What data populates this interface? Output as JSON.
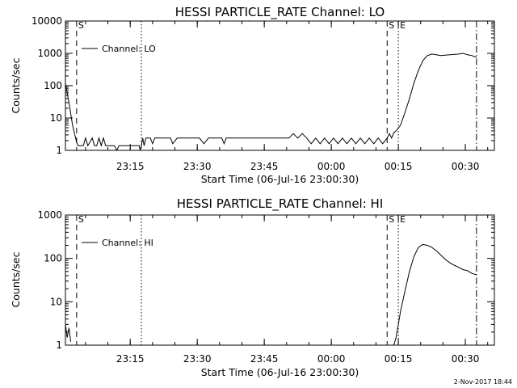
{
  "chart_data": [
    {
      "type": "line",
      "title": "HESSI PARTICLE_RATE Channel: LO",
      "xlabel": "Start Time (06-Jul-16 23:00:30)",
      "ylabel": "Counts/sec",
      "yscale": "log",
      "ylim": [
        1,
        10000
      ],
      "y_ticks": [
        1,
        10,
        100,
        1000,
        10000
      ],
      "y_tick_labels": [
        "1",
        "10",
        "100",
        "1000",
        "10000"
      ],
      "x_unit": "minutes after 23:00:30",
      "xlim": [
        0,
        96
      ],
      "x_ticks": [
        14.5,
        29.5,
        44.5,
        59.5,
        74.5,
        89.5
      ],
      "x_tick_labels": [
        "23:15",
        "23:30",
        "23:45",
        "00:00",
        "00:15",
        "00:30"
      ],
      "legend": {
        "label": "Channel: LO",
        "position": "top-left"
      },
      "grid": false,
      "markers": [
        {
          "x": 2.5,
          "style": "dashed",
          "label": "S"
        },
        {
          "x": 17,
          "style": "dotted",
          "label": ""
        },
        {
          "x": 72,
          "style": "dashed",
          "label": "S"
        },
        {
          "x": 74.5,
          "style": "dotted",
          "label": "E"
        },
        {
          "x": 92,
          "style": "dashdot",
          "label": ""
        }
      ],
      "series": [
        {
          "name": "Channel: LO",
          "x": [
            0,
            0.8,
            1.6,
            2.4,
            2.8,
            4,
            4.5,
            5,
            6,
            6.5,
            7,
            7.5,
            8,
            8.5,
            9,
            10,
            11,
            11.5,
            12,
            16.5,
            16.7,
            17,
            17.3,
            17.6,
            18,
            18.5,
            19,
            19.5,
            20,
            22,
            23.5,
            24,
            25,
            26,
            28,
            30,
            31,
            32,
            33,
            34,
            35,
            35.5,
            36,
            38,
            40,
            44,
            46,
            50,
            51,
            52,
            53,
            54,
            55,
            56,
            57,
            58,
            59,
            60,
            61,
            62,
            63,
            64,
            65,
            66,
            67,
            68,
            69,
            70,
            71,
            72,
            72.5,
            73,
            73.5,
            74,
            75,
            76,
            77,
            78,
            79,
            80,
            81,
            82,
            83,
            84,
            86,
            88,
            89,
            90,
            91,
            92
          ],
          "y": [
            120,
            30,
            6,
            2,
            1.4,
            1.4,
            2.4,
            1.4,
            2.4,
            1.4,
            1.4,
            2.4,
            1.4,
            2.4,
            1.4,
            1.4,
            1.4,
            1,
            1.4,
            1.4,
            1,
            1.4,
            2.4,
            1.4,
            2.4,
            2.4,
            2.4,
            1.6,
            2.4,
            2.4,
            2.4,
            1.6,
            2.4,
            2.4,
            2.4,
            2.4,
            1.6,
            2.4,
            2.4,
            2.4,
            2.4,
            1.6,
            2.4,
            2.4,
            2.4,
            2.4,
            2.4,
            2.4,
            3.3,
            2.4,
            3.3,
            2.4,
            1.6,
            2.4,
            1.6,
            2.4,
            1.6,
            2.4,
            1.6,
            2.4,
            1.6,
            2.4,
            1.6,
            2.4,
            1.6,
            2.4,
            1.6,
            2.4,
            1.6,
            2.4,
            3.3,
            2.4,
            3.5,
            4,
            6,
            15,
            40,
            120,
            300,
            600,
            850,
            950,
            900,
            850,
            900,
            950,
            1000,
            900,
            850,
            750
          ]
        }
      ]
    },
    {
      "type": "line",
      "title": "HESSI PARTICLE_RATE Channel: HI",
      "xlabel": "Start Time (06-Jul-16 23:00:30)",
      "ylabel": "Counts/sec",
      "yscale": "log",
      "ylim": [
        1,
        1000
      ],
      "y_ticks": [
        1,
        10,
        100,
        1000
      ],
      "y_tick_labels": [
        "1",
        "10",
        "100",
        "1000"
      ],
      "x_unit": "minutes after 23:00:30",
      "xlim": [
        0,
        96
      ],
      "x_ticks": [
        14.5,
        29.5,
        44.5,
        59.5,
        74.5,
        89.5
      ],
      "x_tick_labels": [
        "23:15",
        "23:30",
        "23:45",
        "00:00",
        "00:15",
        "00:30"
      ],
      "legend": {
        "label": "Channel: HI",
        "position": "top-left"
      },
      "grid": false,
      "markers": [
        {
          "x": 2.5,
          "style": "dashed",
          "label": "S"
        },
        {
          "x": 17,
          "style": "dotted",
          "label": ""
        },
        {
          "x": 72,
          "style": "dashed",
          "label": "S"
        },
        {
          "x": 74.5,
          "style": "dotted",
          "label": "E"
        },
        {
          "x": 92,
          "style": "dashdot",
          "label": ""
        }
      ],
      "series": [
        {
          "name": "Channel: HI",
          "x": [
            0,
            0.4,
            0.8,
            1.2,
            73.5,
            74,
            74.5,
            75,
            76,
            77,
            78,
            79,
            80,
            81,
            82,
            83,
            84,
            85,
            86,
            87,
            88,
            89,
            90,
            91,
            92
          ],
          "y": [
            3,
            1.5,
            2.5,
            1.2,
            1,
            1.5,
            3,
            6,
            18,
            50,
            110,
            180,
            210,
            200,
            180,
            150,
            120,
            95,
            80,
            70,
            62,
            55,
            52,
            45,
            42
          ]
        }
      ]
    }
  ],
  "footer": "2-Nov-2017 18:44"
}
